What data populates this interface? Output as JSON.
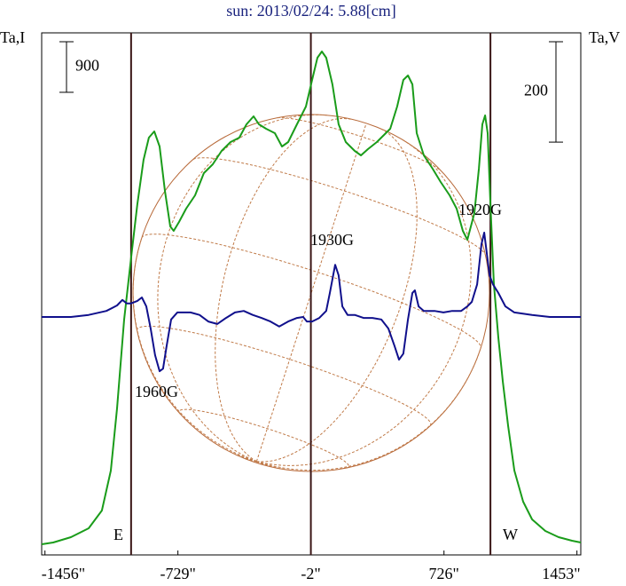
{
  "chart_data": {
    "type": "line",
    "title": "sun: 2013/02/24: 5.88[cm]",
    "y_label": "Ta,I",
    "y2_label": "Ta,V",
    "xlim": [
      -1474,
      1474
    ],
    "xticks": [
      {
        "value": -1456,
        "label": "-1456\""
      },
      {
        "value": -729,
        "label": "-729\""
      },
      {
        "value": -2,
        "label": "-2\""
      },
      {
        "value": 726,
        "label": "726\""
      },
      {
        "value": 1453,
        "label": "1453\""
      }
    ],
    "ylim": [
      0,
      9290
    ],
    "y2lim": [
      -474,
      566
    ],
    "vlines": [
      -985,
      -2,
      980
    ],
    "scale_bars": [
      {
        "axis": "y",
        "value": 900
      },
      {
        "axis": "y2",
        "value": 200
      }
    ],
    "annotations": [
      "1960G",
      "1930G",
      "1920G",
      "E",
      "W"
    ],
    "series": [
      {
        "color": "#1a9c1a",
        "axis": "y",
        "x": [
          -1474,
          -1411,
          -1314,
          -1217,
          -1145,
          -1096,
          -1062,
          -1023,
          -985,
          -951,
          -917,
          -888,
          -858,
          -829,
          -800,
          -771,
          -752,
          -723,
          -684,
          -635,
          -587,
          -538,
          -490,
          -441,
          -393,
          -354,
          -315,
          -286,
          -247,
          -199,
          -160,
          -126,
          -78,
          -29,
          5,
          34,
          58,
          82,
          116,
          150,
          189,
          238,
          272,
          310,
          359,
          432,
          470,
          504,
          529,
          553,
          577,
          616,
          664,
          708,
          757,
          795,
          829,
          854,
          892,
          917,
          936,
          951,
          965,
          980,
          999,
          1023,
          1048,
          1077,
          1111,
          1159,
          1208,
          1280,
          1353,
          1426,
          1474
        ],
        "values": [
          190,
          221,
          316,
          474,
          790,
          1501,
          2607,
          4187,
          5293,
          6241,
          7031,
          7426,
          7537,
          7268,
          6478,
          5846,
          5767,
          5925,
          6162,
          6399,
          6794,
          6952,
          7189,
          7347,
          7426,
          7663,
          7805,
          7663,
          7584,
          7505,
          7268,
          7347,
          7663,
          7979,
          8453,
          8848,
          8959,
          8848,
          8374,
          7663,
          7347,
          7189,
          7110,
          7221,
          7347,
          7584,
          7979,
          8453,
          8532,
          8374,
          7505,
          7110,
          6873,
          6636,
          6399,
          6162,
          5767,
          5609,
          6083,
          6873,
          7663,
          7821,
          7505,
          6241,
          4819,
          3871,
          3081,
          2291,
          1501,
          948,
          632,
          427,
          316,
          253,
          221
        ]
      },
      {
        "color": "#10108c",
        "axis": "y2",
        "x": [
          -1474,
          -1314,
          -1217,
          -1120,
          -1062,
          -1033,
          -1009,
          -985,
          -951,
          -926,
          -902,
          -878,
          -854,
          -829,
          -810,
          -791,
          -766,
          -732,
          -660,
          -611,
          -563,
          -514,
          -466,
          -417,
          -369,
          -320,
          -272,
          -223,
          -175,
          -126,
          -78,
          -44,
          -24,
          5,
          44,
          82,
          102,
          131,
          150,
          170,
          199,
          238,
          286,
          335,
          383,
          422,
          456,
          480,
          504,
          529,
          553,
          567,
          587,
          616,
          674,
          723,
          771,
          820,
          854,
          878,
          907,
          931,
          946,
          960,
          975,
          994,
          1023,
          1062,
          1111,
          1208,
          1305,
          1474
        ],
        "values": [
          0,
          0,
          4,
          12,
          23,
          34,
          27,
          27,
          32,
          39,
          21,
          -23,
          -76,
          -108,
          -103,
          -58,
          -5,
          9,
          9,
          4,
          -9,
          -14,
          -2,
          9,
          12,
          4,
          -2,
          -9,
          -19,
          -9,
          -2,
          0,
          -9,
          -9,
          -2,
          12,
          48,
          104,
          83,
          21,
          4,
          4,
          -2,
          -2,
          -5,
          -23,
          -58,
          -85,
          -73,
          -5,
          48,
          53,
          21,
          12,
          12,
          9,
          12,
          12,
          21,
          30,
          65,
          145,
          168,
          127,
          83,
          65,
          48,
          21,
          9,
          4,
          0,
          0
        ]
      }
    ]
  }
}
